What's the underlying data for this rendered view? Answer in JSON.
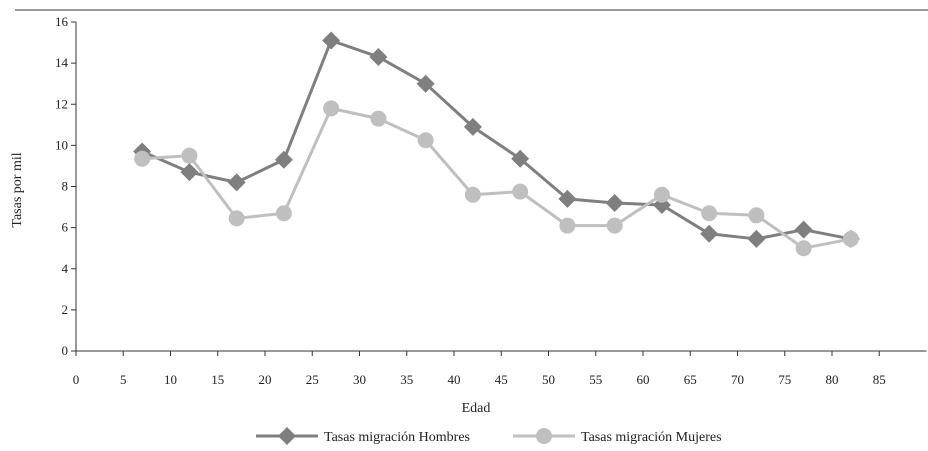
{
  "chart_data": {
    "type": "line",
    "xlabel": "Edad",
    "ylabel": "Tasas por mil",
    "xlim": [
      0,
      90
    ],
    "ylim": [
      0,
      16
    ],
    "xticks": [
      0,
      5,
      10,
      15,
      20,
      25,
      30,
      35,
      40,
      45,
      50,
      55,
      60,
      65,
      70,
      75,
      80,
      85
    ],
    "yticks": [
      0,
      2,
      4,
      6,
      8,
      10,
      12,
      14,
      16
    ],
    "grid": false,
    "legend_position": "bottom",
    "series": [
      {
        "name": "Tasas migración Hombres",
        "color": "#7f7f7f",
        "marker": "diamond",
        "x": [
          7,
          12,
          17,
          22,
          27,
          32,
          37,
          42,
          47,
          52,
          57,
          62,
          67,
          72,
          77,
          82
        ],
        "y": [
          9.7,
          8.7,
          8.2,
          9.3,
          15.1,
          14.3,
          13.0,
          10.9,
          9.35,
          7.4,
          7.2,
          7.1,
          5.7,
          5.45,
          5.9,
          5.45
        ]
      },
      {
        "name": "Tasas migración Mujeres",
        "color": "#bfbfbf",
        "marker": "circle",
        "x": [
          7,
          12,
          17,
          22,
          27,
          32,
          37,
          42,
          47,
          52,
          57,
          62,
          67,
          72,
          77,
          82
        ],
        "y": [
          9.35,
          9.5,
          6.45,
          6.7,
          11.8,
          11.3,
          10.25,
          7.6,
          7.75,
          6.1,
          6.1,
          7.6,
          6.7,
          6.6,
          5.0,
          5.45
        ]
      }
    ]
  }
}
